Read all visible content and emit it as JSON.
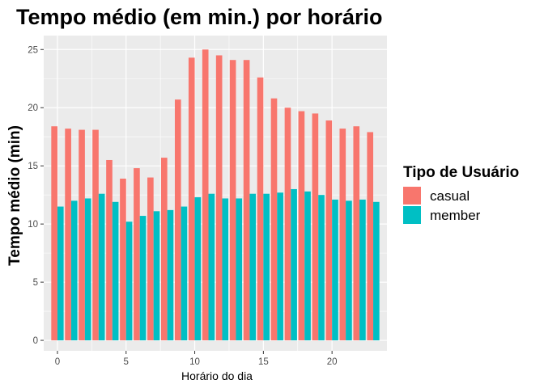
{
  "chart_data": {
    "type": "bar",
    "title": "Tempo médio (em min.) por horário",
    "xlabel": "Horário do dia",
    "ylabel": "Tempo médio (min)",
    "x": [
      0,
      1,
      2,
      3,
      4,
      5,
      6,
      7,
      8,
      9,
      10,
      11,
      12,
      13,
      14,
      15,
      16,
      17,
      18,
      19,
      20,
      21,
      22,
      23
    ],
    "x_ticks": [
      "0",
      "5",
      "10",
      "15",
      "20"
    ],
    "x_tick_values": [
      0,
      5,
      10,
      15,
      20
    ],
    "y_ticks": [
      "0",
      "5",
      "10",
      "15",
      "20",
      "25"
    ],
    "y_tick_values": [
      0,
      5,
      10,
      15,
      20,
      25
    ],
    "xlim": [
      -1.0,
      24.0
    ],
    "ylim": [
      -0.9,
      26.2
    ],
    "grid": true,
    "legend": {
      "title": "Tipo de Usuário",
      "position": "right"
    },
    "series": [
      {
        "name": "casual",
        "color": "#F8766D",
        "values": [
          18.4,
          18.2,
          18.1,
          18.1,
          15.5,
          13.9,
          14.8,
          14.0,
          15.7,
          20.7,
          24.3,
          25.0,
          24.5,
          24.1,
          24.1,
          22.6,
          20.8,
          20.0,
          19.7,
          19.5,
          18.9,
          18.2,
          18.4,
          17.9
        ]
      },
      {
        "name": "member",
        "color": "#00BFC4",
        "values": [
          11.5,
          12.0,
          12.2,
          12.6,
          11.9,
          10.2,
          10.7,
          11.1,
          11.2,
          11.5,
          12.3,
          12.6,
          12.2,
          12.2,
          12.6,
          12.6,
          12.7,
          13.0,
          12.8,
          12.5,
          12.1,
          12.0,
          12.1,
          11.9
        ]
      }
    ]
  }
}
